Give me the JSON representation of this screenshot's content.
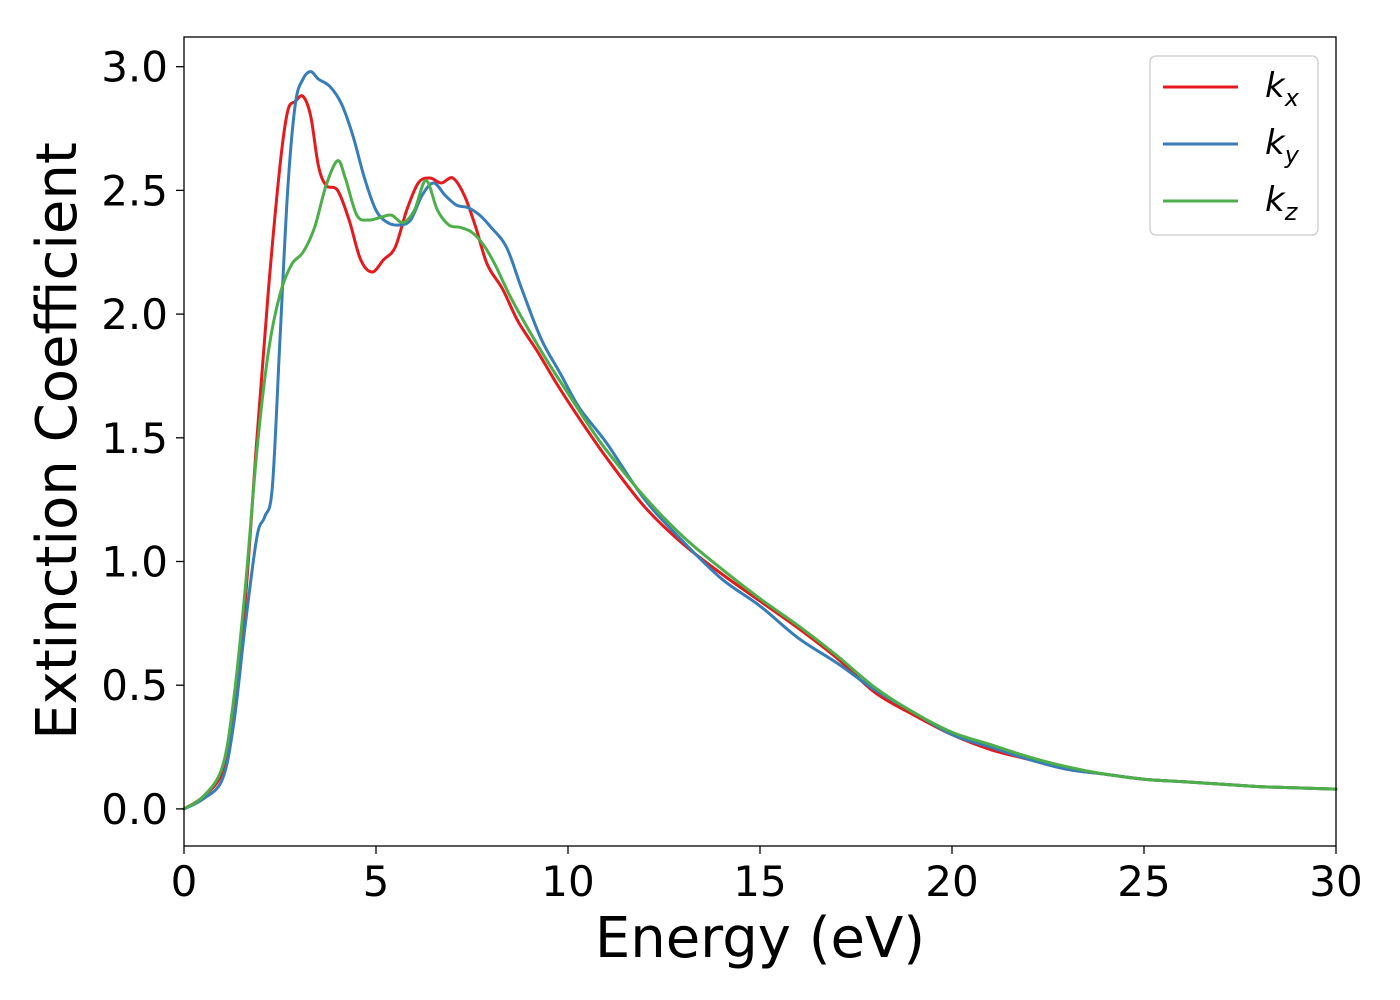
{
  "chart_data": {
    "type": "line",
    "xlabel": "Energy (eV)",
    "ylabel": "Extinction Coefficient",
    "xlim": [
      0,
      30
    ],
    "ylim": [
      -0.15,
      3.12
    ],
    "xticks": [
      "0",
      "5",
      "10",
      "15",
      "20",
      "25",
      "30"
    ],
    "yticks": [
      "0.0",
      "0.5",
      "1.0",
      "1.5",
      "2.0",
      "2.5",
      "3.0"
    ],
    "grid": false,
    "legend_position": "top-right",
    "series": [
      {
        "name": "k",
        "subscript": "x",
        "color": "#e41a1c",
        "x": [
          0,
          0.5,
          1.0,
          1.3,
          1.6,
          1.9,
          2.2,
          2.5,
          2.7,
          2.9,
          3.1,
          3.3,
          3.5,
          3.7,
          4.0,
          4.3,
          4.6,
          4.9,
          5.2,
          5.5,
          5.8,
          6.1,
          6.4,
          6.7,
          7.0,
          7.3,
          7.6,
          7.9,
          8.3,
          8.7,
          9.2,
          9.7,
          10.2,
          11,
          12,
          13,
          14,
          15,
          16,
          17,
          18,
          19,
          20,
          21,
          22,
          23,
          24,
          25,
          26,
          27,
          28,
          29,
          30
        ],
        "values": [
          0.0,
          0.05,
          0.15,
          0.4,
          0.85,
          1.5,
          2.1,
          2.6,
          2.82,
          2.86,
          2.88,
          2.8,
          2.6,
          2.52,
          2.5,
          2.38,
          2.22,
          2.17,
          2.22,
          2.27,
          2.42,
          2.53,
          2.55,
          2.53,
          2.55,
          2.48,
          2.35,
          2.2,
          2.1,
          1.97,
          1.85,
          1.72,
          1.6,
          1.42,
          1.22,
          1.07,
          0.95,
          0.84,
          0.73,
          0.61,
          0.47,
          0.38,
          0.3,
          0.24,
          0.2,
          0.16,
          0.14,
          0.12,
          0.11,
          0.1,
          0.09,
          0.085,
          0.08
        ]
      },
      {
        "name": "k",
        "subscript": "y",
        "color": "#377eb8",
        "x": [
          0,
          0.5,
          1.0,
          1.3,
          1.6,
          1.9,
          2.1,
          2.3,
          2.5,
          2.7,
          2.9,
          3.1,
          3.3,
          3.5,
          3.8,
          4.1,
          4.4,
          4.7,
          5.0,
          5.3,
          5.6,
          5.9,
          6.2,
          6.5,
          6.8,
          7.1,
          7.4,
          7.7,
          8.0,
          8.4,
          8.8,
          9.3,
          9.8,
          10.3,
          11,
          12,
          13,
          14,
          15,
          16,
          17,
          18,
          19,
          20,
          21,
          22,
          23,
          24,
          25,
          26,
          27,
          28,
          29,
          30
        ],
        "values": [
          0.0,
          0.04,
          0.12,
          0.35,
          0.75,
          1.1,
          1.18,
          1.3,
          1.9,
          2.5,
          2.85,
          2.95,
          2.98,
          2.95,
          2.92,
          2.85,
          2.72,
          2.55,
          2.42,
          2.37,
          2.36,
          2.38,
          2.48,
          2.53,
          2.48,
          2.44,
          2.43,
          2.4,
          2.35,
          2.27,
          2.1,
          1.9,
          1.76,
          1.62,
          1.48,
          1.25,
          1.08,
          0.93,
          0.82,
          0.69,
          0.59,
          0.48,
          0.39,
          0.3,
          0.25,
          0.2,
          0.16,
          0.14,
          0.12,
          0.11,
          0.1,
          0.09,
          0.085,
          0.08
        ]
      },
      {
        "name": "k",
        "subscript": "z",
        "color": "#4daf4a",
        "x": [
          0,
          0.5,
          1.0,
          1.3,
          1.6,
          1.9,
          2.2,
          2.5,
          2.8,
          3.1,
          3.4,
          3.7,
          4.0,
          4.2,
          4.5,
          4.8,
          5.1,
          5.4,
          5.7,
          6.0,
          6.3,
          6.6,
          6.9,
          7.2,
          7.5,
          7.8,
          8.1,
          8.5,
          9.0,
          9.5,
          10.0,
          10.5,
          11,
          12,
          13,
          14,
          15,
          16,
          17,
          18,
          19,
          20,
          21,
          22,
          23,
          24,
          25,
          26,
          27,
          28,
          29,
          30
        ],
        "values": [
          0.0,
          0.05,
          0.17,
          0.45,
          0.9,
          1.45,
          1.85,
          2.08,
          2.2,
          2.25,
          2.35,
          2.52,
          2.62,
          2.55,
          2.4,
          2.38,
          2.39,
          2.4,
          2.37,
          2.42,
          2.54,
          2.42,
          2.36,
          2.35,
          2.33,
          2.28,
          2.2,
          2.07,
          1.93,
          1.8,
          1.68,
          1.56,
          1.45,
          1.26,
          1.1,
          0.97,
          0.85,
          0.74,
          0.62,
          0.49,
          0.39,
          0.31,
          0.26,
          0.21,
          0.17,
          0.14,
          0.12,
          0.11,
          0.1,
          0.09,
          0.085,
          0.08
        ]
      }
    ]
  }
}
